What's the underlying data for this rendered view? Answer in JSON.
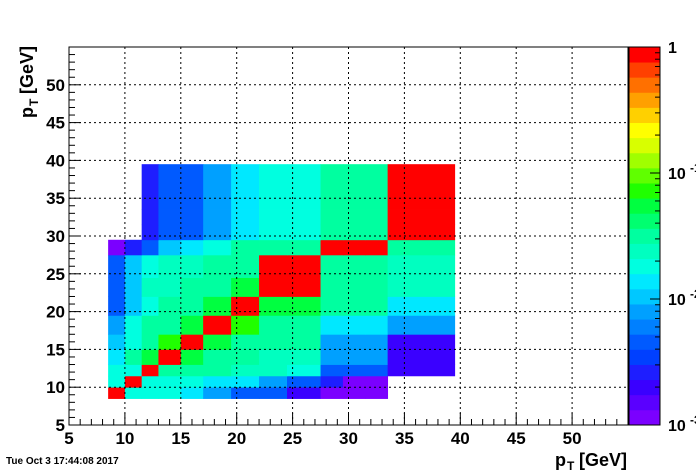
{
  "timestamp": "Tue Oct  3 17:44:08 2017",
  "chart_data": {
    "type": "heatmap",
    "title": "",
    "xlabel": "p",
    "xlabel_sub": "T",
    "xlabel_unit": "[GeV]",
    "ylabel": "p",
    "ylabel_sub": "T",
    "ylabel_unit": "[GeV]",
    "xlim": [
      5,
      55
    ],
    "ylim": [
      5,
      55
    ],
    "x_ticks": [
      5,
      10,
      15,
      20,
      25,
      30,
      35,
      40,
      45,
      50
    ],
    "y_ticks": [
      5,
      10,
      15,
      20,
      25,
      30,
      35,
      40,
      45,
      50
    ],
    "grid": true,
    "z_scale": "log",
    "z_range": [
      0.001,
      1
    ],
    "z_tick_labels": [
      "1",
      "10",
      "10",
      "10"
    ],
    "z_tick_exponents": [
      "",
      "-1",
      "-2",
      "-3"
    ],
    "x_bins": [
      8.5,
      10,
      11.5,
      13,
      15,
      17,
      19.5,
      22,
      24.5,
      27.5,
      29.5,
      31.5,
      33.5,
      39.5
    ],
    "y_bins": [
      8.5,
      10,
      11.5,
      13,
      15,
      17,
      19.5,
      22,
      24.5,
      27.5,
      29.5,
      31.5,
      33.5,
      39.5
    ],
    "z": [
      [
        1.0,
        0.02,
        0.02,
        0.02,
        0.015,
        0.008,
        0.005,
        0.004,
        0.002,
        0.0013,
        0.0013,
        0.0013,
        null
      ],
      [
        0.02,
        1.0,
        0.02,
        0.02,
        0.02,
        0.015,
        0.015,
        0.008,
        0.004,
        0.003,
        0.0013,
        0.0013,
        null
      ],
      [
        0.02,
        0.02,
        1.0,
        0.035,
        0.035,
        0.035,
        0.025,
        0.025,
        0.02,
        0.004,
        0.004,
        0.004,
        0.002
      ],
      [
        0.015,
        0.035,
        0.055,
        1.0,
        0.055,
        0.035,
        0.035,
        0.025,
        0.025,
        0.008,
        0.008,
        0.008,
        0.002
      ],
      [
        0.01,
        0.02,
        0.035,
        0.07,
        1.0,
        0.055,
        0.035,
        0.035,
        0.035,
        0.008,
        0.008,
        0.008,
        0.002
      ],
      [
        0.008,
        0.02,
        0.035,
        0.035,
        0.055,
        1.0,
        0.07,
        0.035,
        0.035,
        0.015,
        0.015,
        0.015,
        0.008
      ],
      [
        0.004,
        0.01,
        0.02,
        0.035,
        0.035,
        0.055,
        1.0,
        0.055,
        0.055,
        0.035,
        0.035,
        0.035,
        0.015
      ],
      [
        0.004,
        0.01,
        0.025,
        0.025,
        0.035,
        0.035,
        0.055,
        1.0,
        1.0,
        0.035,
        0.035,
        0.035,
        0.025
      ],
      [
        0.004,
        0.01,
        0.02,
        0.025,
        0.025,
        0.035,
        0.035,
        1.0,
        1.0,
        0.035,
        0.035,
        0.035,
        0.025
      ],
      [
        0.0013,
        0.003,
        0.005,
        0.01,
        0.015,
        0.02,
        0.035,
        0.035,
        0.035,
        1.0,
        1.0,
        1.0,
        0.035
      ],
      [
        null,
        null,
        0.0025,
        0.004,
        0.005,
        0.008,
        0.015,
        0.02,
        0.02,
        0.035,
        0.035,
        0.035,
        1.0
      ],
      [
        null,
        null,
        0.0025,
        0.004,
        0.005,
        0.008,
        0.015,
        0.02,
        0.02,
        0.035,
        0.035,
        0.035,
        1.0
      ],
      [
        null,
        null,
        0.0025,
        0.004,
        0.005,
        0.008,
        0.015,
        0.02,
        0.02,
        0.035,
        0.035,
        0.035,
        1.0
      ]
    ]
  }
}
